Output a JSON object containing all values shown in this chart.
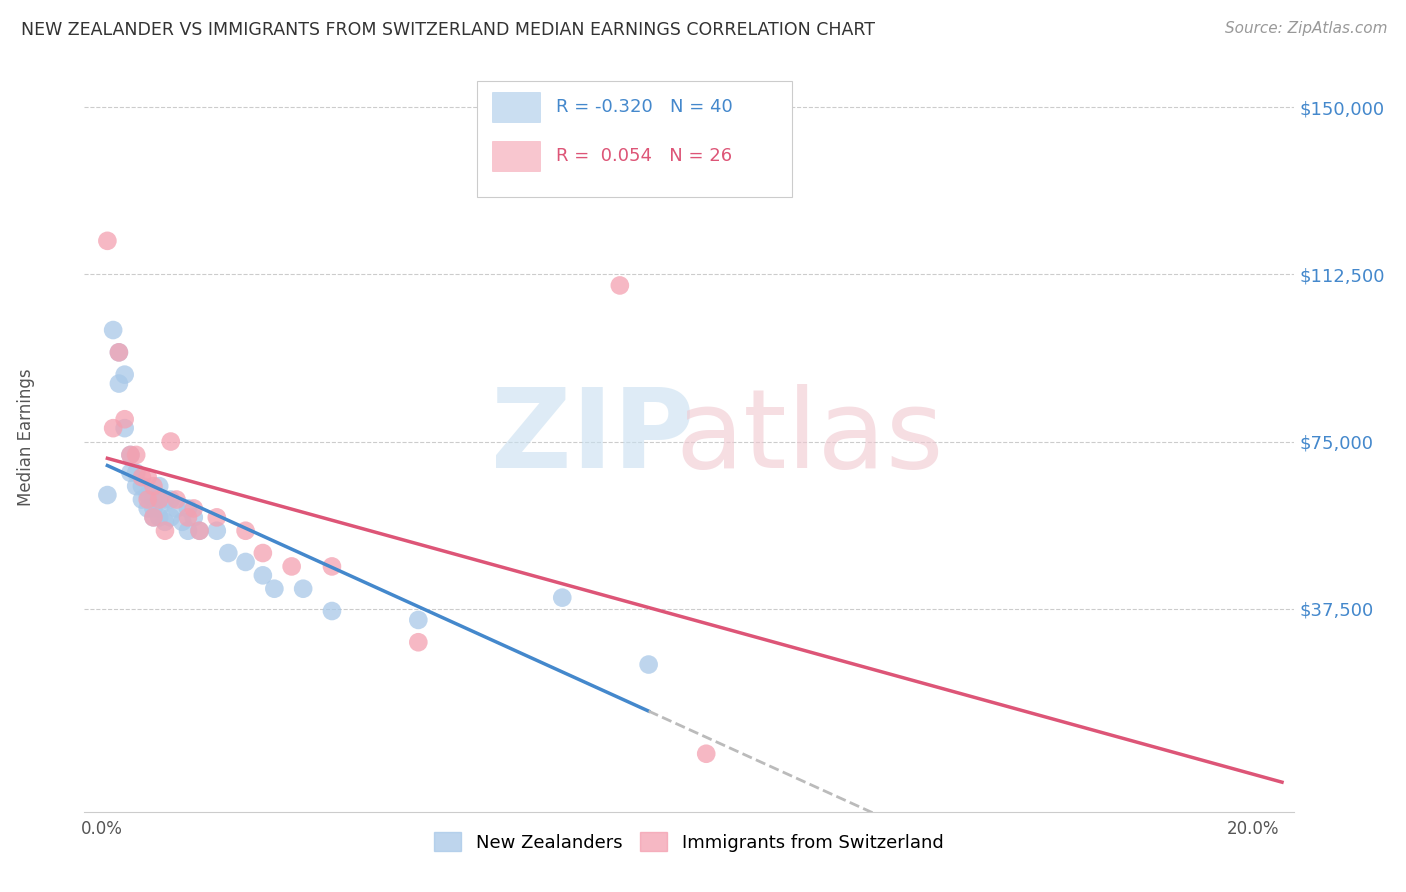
{
  "title": "NEW ZEALANDER VS IMMIGRANTS FROM SWITZERLAND MEDIAN EARNINGS CORRELATION CHART",
  "source": "Source: ZipAtlas.com",
  "ylabel": "Median Earnings",
  "y_ticks": [
    0,
    37500,
    75000,
    112500,
    150000
  ],
  "y_tick_labels": [
    "",
    "$37,500",
    "$75,000",
    "$112,500",
    "$150,000"
  ],
  "blue_color": "#a8c8e8",
  "pink_color": "#f4a0b0",
  "trendline_blue": "#4488cc",
  "trendline_pink": "#dd5577",
  "trendline_dashed_color": "#bbbbbb",
  "legend_R_blue": "-0.320",
  "legend_N_blue": "40",
  "legend_R_pink": "0.054",
  "legend_N_pink": "26",
  "legend_label_blue": "New Zealanders",
  "legend_label_pink": "Immigrants from Switzerland",
  "blue_points_x": [
    0.001,
    0.002,
    0.003,
    0.003,
    0.004,
    0.004,
    0.005,
    0.005,
    0.006,
    0.006,
    0.007,
    0.007,
    0.008,
    0.008,
    0.009,
    0.009,
    0.009,
    0.01,
    0.01,
    0.01,
    0.011,
    0.011,
    0.012,
    0.012,
    0.013,
    0.014,
    0.015,
    0.015,
    0.016,
    0.017,
    0.02,
    0.022,
    0.025,
    0.028,
    0.03,
    0.035,
    0.04,
    0.055,
    0.08,
    0.095
  ],
  "blue_points_y": [
    63000,
    100000,
    95000,
    88000,
    90000,
    78000,
    72000,
    68000,
    68000,
    65000,
    65000,
    62000,
    63000,
    60000,
    62000,
    60000,
    58000,
    65000,
    60000,
    58000,
    62000,
    57000,
    62000,
    58000,
    60000,
    57000,
    60000,
    55000,
    58000,
    55000,
    55000,
    50000,
    48000,
    45000,
    42000,
    42000,
    37000,
    35000,
    40000,
    25000
  ],
  "pink_points_x": [
    0.001,
    0.002,
    0.003,
    0.004,
    0.005,
    0.006,
    0.007,
    0.008,
    0.008,
    0.009,
    0.009,
    0.01,
    0.011,
    0.012,
    0.013,
    0.015,
    0.016,
    0.017,
    0.02,
    0.025,
    0.028,
    0.033,
    0.04,
    0.055,
    0.09,
    0.105
  ],
  "pink_points_y": [
    120000,
    78000,
    95000,
    80000,
    72000,
    72000,
    67000,
    67000,
    62000,
    65000,
    58000,
    62000,
    55000,
    75000,
    62000,
    58000,
    60000,
    55000,
    58000,
    55000,
    50000,
    47000,
    47000,
    30000,
    110000,
    5000
  ]
}
